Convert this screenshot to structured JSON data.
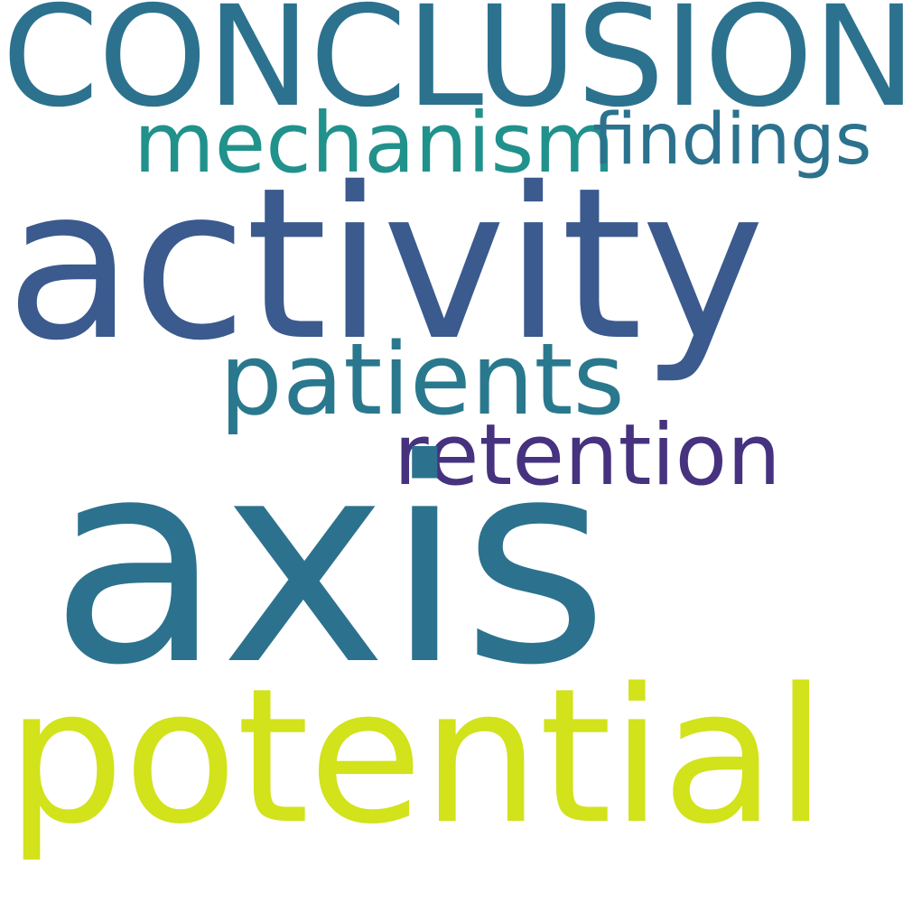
{
  "words": [
    {
      "text": "CONCLUSIONS",
      "color": "#2c728e"
    },
    {
      "text": "mechanism",
      "color": "#21918c"
    },
    {
      "text": "findings",
      "color": "#2c728e"
    },
    {
      "text": "activity",
      "color": "#3b5a8e"
    },
    {
      "text": "patients",
      "color": "#2a788e"
    },
    {
      "text": "retention",
      "color": "#46327e"
    },
    {
      "text": "axis",
      "color": "#2c728e"
    },
    {
      "text": "potential",
      "color": "#d2e21b"
    }
  ]
}
